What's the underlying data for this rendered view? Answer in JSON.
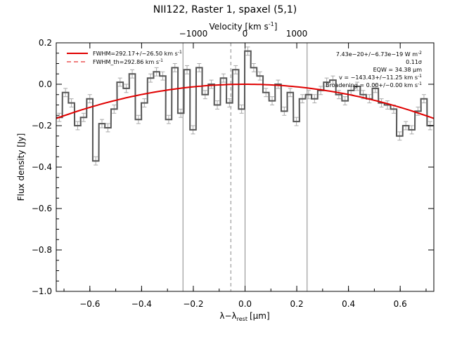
{
  "chart_data": {
    "type": "line",
    "title": "NII122, Raster 1, spaxel (5,1)",
    "xlabel": "λ−λ",
    "xlabel_sub": "rest",
    "xlabel_unit": "[μm]",
    "ylabel": "Flux density [Jy]",
    "top_axis_label": "Velocity [km s",
    "top_axis_label_sup": "-1",
    "top_axis_label_end": "]",
    "xlim": [
      -0.73,
      0.73
    ],
    "ylim": [
      -1.0,
      0.2
    ],
    "x_ticks": [
      -0.6,
      -0.4,
      -0.2,
      0.0,
      0.2,
      0.4,
      0.6
    ],
    "x_tick_labels": [
      "−0.6",
      "−0.4",
      "−0.2",
      "0.0",
      "0.2",
      "0.4",
      "0.6"
    ],
    "y_ticks": [
      -1.0,
      -0.8,
      -0.6,
      -0.4,
      -0.2,
      0.0,
      0.2
    ],
    "y_tick_labels": [
      "−1.0",
      "−0.8",
      "−0.6",
      "−0.4",
      "−0.2",
      "0.0",
      "0.2"
    ],
    "top_ticks": [
      -1000,
      0,
      1000
    ],
    "top_tick_positions": [
      -0.2,
      0.0,
      0.2
    ],
    "top_tick_labels": [
      "−1000",
      "0",
      "1000"
    ],
    "vlines": [
      {
        "x": -0.24,
        "style": "solid"
      },
      {
        "x": -0.055,
        "style": "dashed"
      },
      {
        "x": 0.0,
        "style": "solid"
      },
      {
        "x": 0.24,
        "style": "solid"
      }
    ],
    "series": [
      {
        "kind": "histogram",
        "step": 0.0235,
        "x": [
          -0.73,
          -0.706,
          -0.683,
          -0.659,
          -0.636,
          -0.612,
          -0.589,
          -0.565,
          -0.542,
          -0.518,
          -0.495,
          -0.471,
          -0.448,
          -0.424,
          -0.401,
          -0.377,
          -0.354,
          -0.33,
          -0.307,
          -0.283,
          -0.26,
          -0.236,
          -0.213,
          -0.189,
          -0.166,
          -0.142,
          -0.119,
          -0.095,
          -0.072,
          -0.048,
          -0.025,
          -0.001,
          0.022,
          0.046,
          0.069,
          0.093,
          0.116,
          0.14,
          0.163,
          0.187,
          0.21,
          0.234,
          0.257,
          0.281,
          0.304,
          0.328,
          0.351,
          0.375,
          0.398,
          0.422,
          0.445,
          0.469,
          0.492,
          0.516,
          0.539,
          0.563,
          0.586,
          0.61,
          0.633,
          0.657,
          0.68,
          0.704
        ],
        "y": [
          -0.16,
          -0.04,
          -0.09,
          -0.2,
          -0.16,
          -0.07,
          -0.37,
          -0.19,
          -0.21,
          -0.12,
          0.01,
          -0.02,
          0.05,
          -0.17,
          -0.09,
          0.03,
          0.06,
          0.04,
          -0.17,
          0.08,
          -0.14,
          0.07,
          -0.22,
          0.08,
          -0.05,
          0.0,
          -0.1,
          0.03,
          -0.09,
          0.07,
          -0.12,
          0.16,
          0.08,
          0.04,
          -0.04,
          -0.08,
          0.0,
          -0.13,
          -0.04,
          -0.18,
          -0.07,
          -0.05,
          -0.07,
          -0.03,
          0.01,
          0.02,
          -0.05,
          -0.08,
          -0.03,
          -0.01,
          -0.05,
          -0.07,
          -0.02,
          -0.09,
          -0.1,
          -0.12,
          -0.25,
          -0.2,
          -0.22,
          -0.13,
          -0.07,
          -0.2
        ],
        "err": 0.02,
        "color": "#555555",
        "errcolor": "#aaaaaa"
      },
      {
        "kind": "fit",
        "name": "FWHM=292.17+/−26.50 km s",
        "name_sup": "-1",
        "formula": "gaussian",
        "amplitude": 0.0,
        "center": 0.0,
        "baseline_curvature": -0.31,
        "color": "#e00000"
      }
    ],
    "legend": [
      {
        "label": "FWHM=292.17+/−26.50 km s",
        "sup": "-1",
        "style": "solid",
        "color": "#e00000"
      },
      {
        "label": "FWHM_th=292.86 km s",
        "sup": "-1",
        "style": "dashed",
        "color": "#e00000"
      }
    ],
    "legend_position": "top-left",
    "annotations": [
      {
        "text": "7.43e−20+/−6.73e−19 W m",
        "sup": "-2"
      },
      {
        "text": "0.11σ",
        "sup": ""
      },
      {
        "text": "EQW = 34.38 μm",
        "sup": ""
      },
      {
        "text": "v = −143.43+/−11.25 km s",
        "sup": "-1"
      },
      {
        "text": "Broadening = 0.00+/−0.00 km s",
        "sup": "-1"
      }
    ],
    "annotation_position": "top-right",
    "grid": false
  }
}
